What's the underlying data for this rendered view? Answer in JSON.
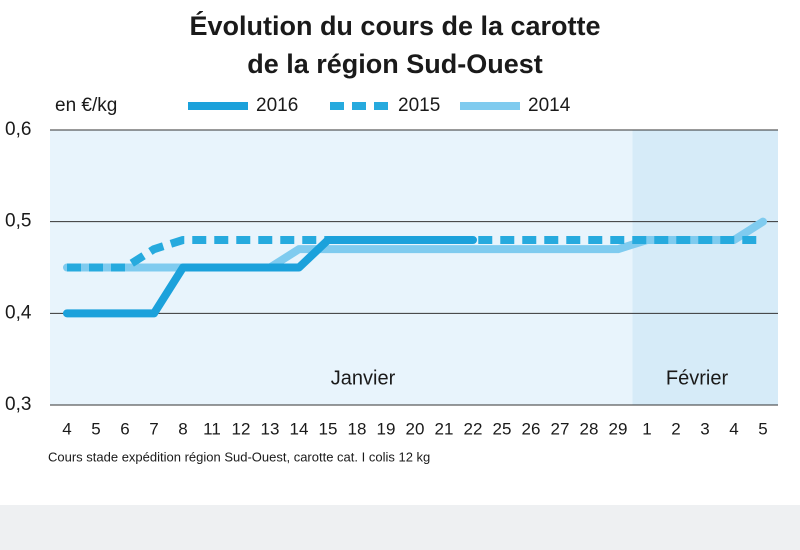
{
  "chart_data": {
    "type": "line",
    "title": "Évolution du cours de la carotte",
    "subtitle": "de la région Sud-Ouest",
    "y_label": "en €/kg",
    "note": "Cours stade expédition région Sud-Ouest, carotte cat. I colis 12 kg",
    "annotations": [
      "Janvier",
      "Février"
    ],
    "categories": [
      "4",
      "5",
      "6",
      "7",
      "8",
      "11",
      "12",
      "13",
      "14",
      "15",
      "18",
      "19",
      "20",
      "21",
      "22",
      "25",
      "26",
      "27",
      "28",
      "29",
      "1",
      "2",
      "3",
      "4",
      "5"
    ],
    "series": [
      {
        "name": "2016",
        "color": "#1ba1db",
        "style": "solid",
        "values": [
          0.4,
          0.4,
          0.4,
          0.4,
          0.45,
          0.45,
          0.45,
          0.45,
          0.45,
          0.48,
          0.48,
          0.48,
          0.48,
          0.48,
          0.48,
          null,
          null,
          null,
          null,
          null,
          null,
          null,
          null,
          null,
          null
        ]
      },
      {
        "name": "2015",
        "color": "#26aade",
        "style": "dashed",
        "values": [
          0.45,
          0.45,
          0.45,
          0.47,
          0.48,
          0.48,
          0.48,
          0.48,
          0.48,
          0.48,
          0.48,
          0.48,
          0.48,
          0.48,
          0.48,
          0.48,
          0.48,
          0.48,
          0.48,
          0.48,
          0.48,
          0.48,
          0.48,
          0.48,
          0.48
        ]
      },
      {
        "name": "2014",
        "color": "#7fcbef",
        "style": "solid",
        "values": [
          0.45,
          0.45,
          0.45,
          0.45,
          0.45,
          0.45,
          0.45,
          0.45,
          0.47,
          0.47,
          0.47,
          0.47,
          0.47,
          0.47,
          0.47,
          0.47,
          0.47,
          0.47,
          0.47,
          0.47,
          0.48,
          0.48,
          0.48,
          0.48,
          0.5
        ]
      }
    ],
    "ylim": [
      0.3,
      0.6
    ],
    "yticks": [
      {
        "value": 0.3,
        "label": "0,3"
      },
      {
        "value": 0.4,
        "label": "0,4"
      },
      {
        "value": 0.5,
        "label": "0,5"
      },
      {
        "value": 0.6,
        "label": "0,6"
      }
    ],
    "grid": true
  }
}
